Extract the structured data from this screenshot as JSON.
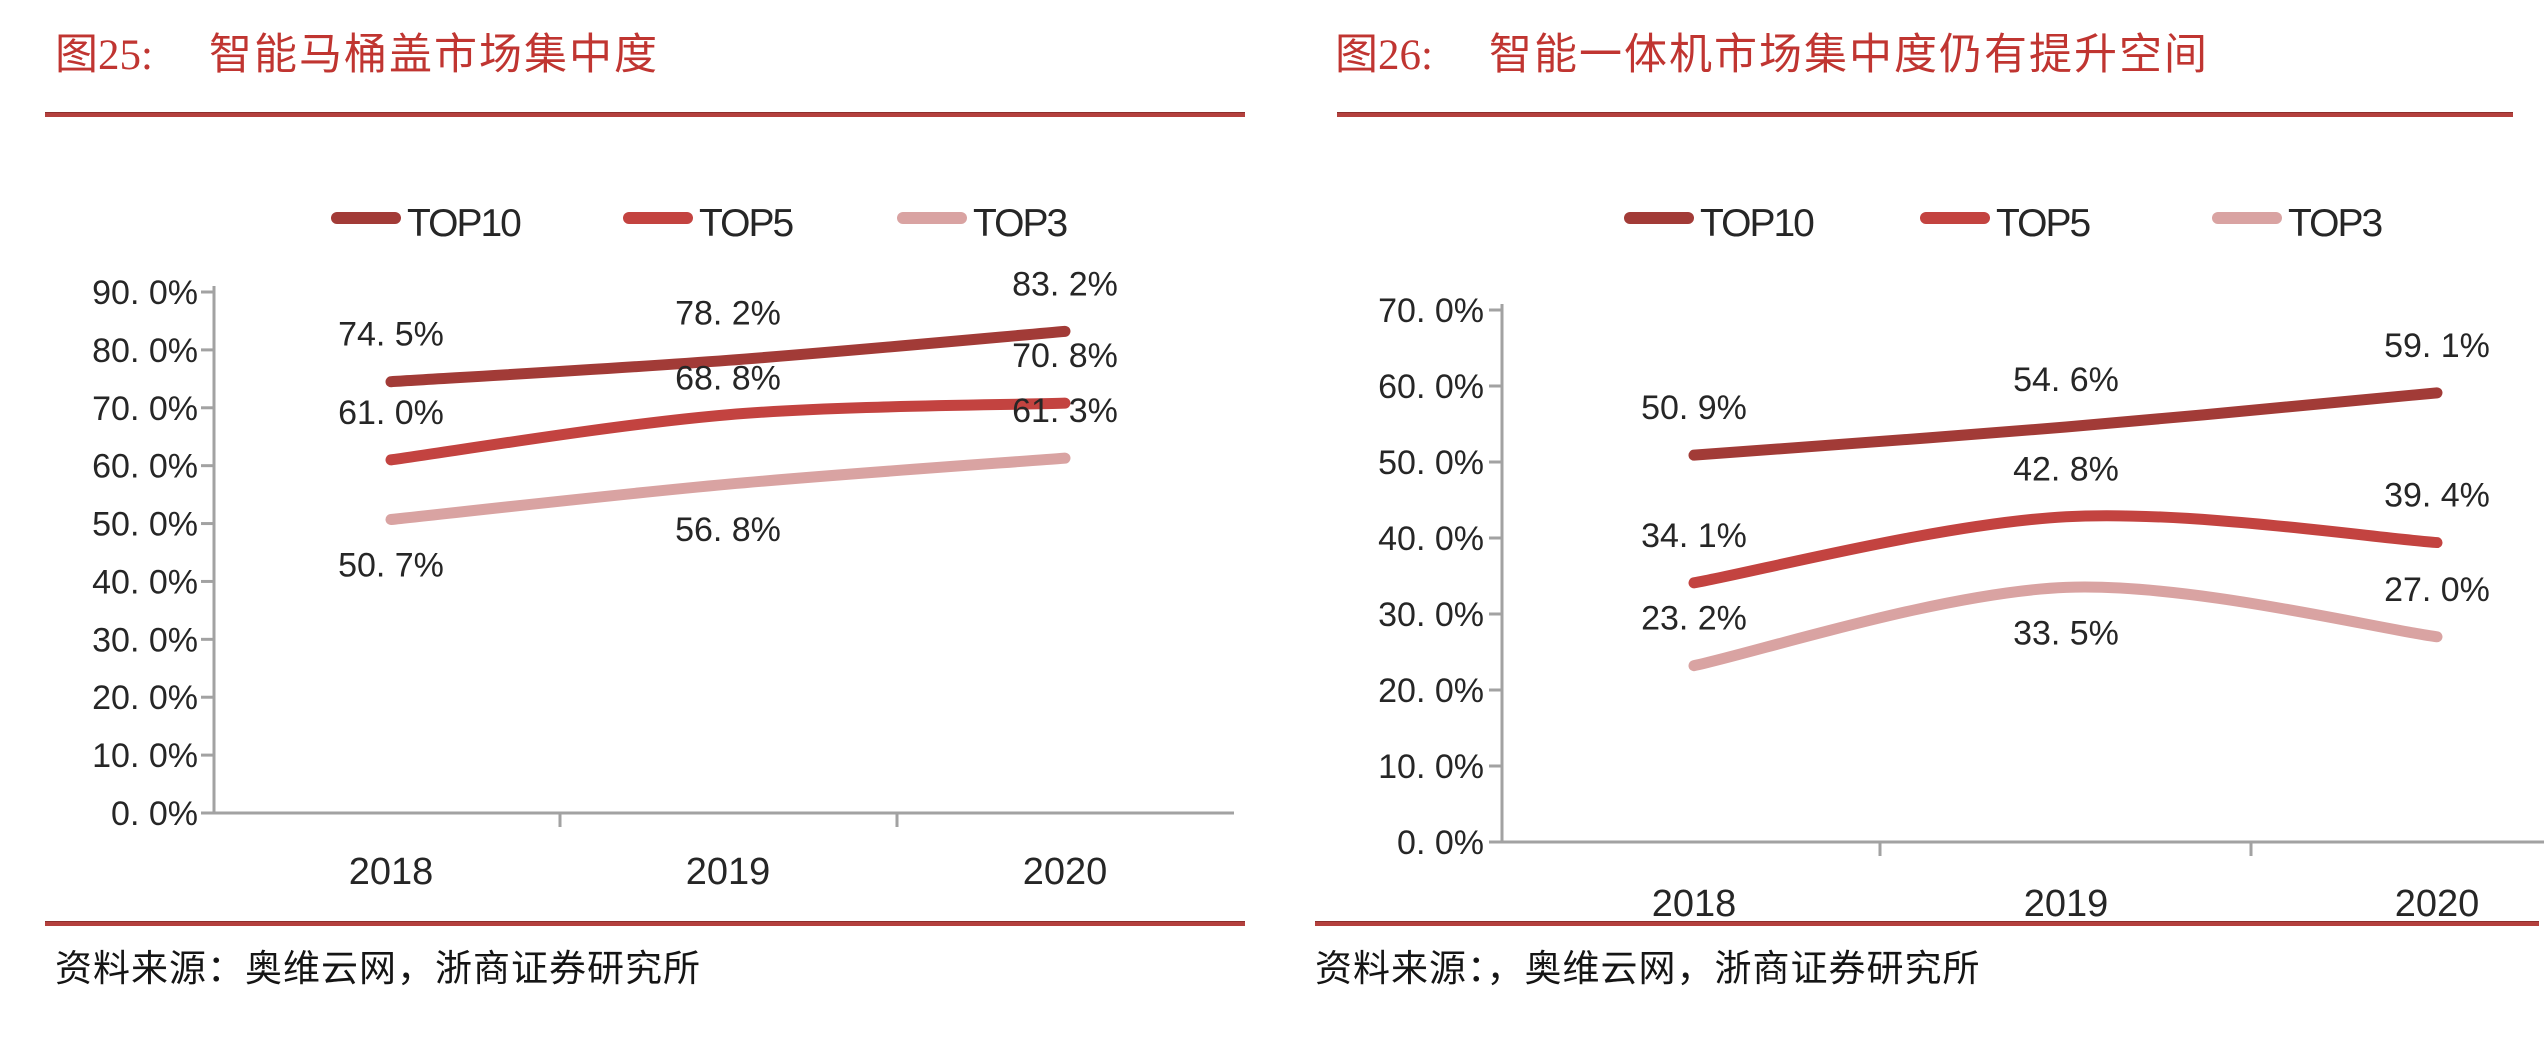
{
  "colors": {
    "top10": "#A23B37",
    "top5": "#C34340",
    "top3": "#D9A3A2",
    "title_red": "#C03531",
    "rule_red": "#B4403D",
    "axis_gray": "#A2A2A2",
    "label_ink": "#262626"
  },
  "figures": [
    {
      "label": "图25:",
      "title": "智能马桶盖市场集中度",
      "source": "资料来源：奥维云网，浙商证券研究所"
    },
    {
      "label": "图26:",
      "title": "智能一体机市场集中度仍有提升空间",
      "source": "资料来源：，奥维云网，浙商证券研究所"
    }
  ],
  "chart_data": [
    {
      "type": "line",
      "title": "图25: 智能马桶盖市场集中度",
      "categories": [
        "2018",
        "2019",
        "2020"
      ],
      "series": [
        {
          "name": "TOP10",
          "color": "#A23B37",
          "values": [
            74.5,
            78.2,
            83.2
          ],
          "labels": [
            "74. 5%",
            "78. 2%",
            "83. 2%"
          ],
          "label_side": [
            "above",
            "above",
            "above"
          ]
        },
        {
          "name": "TOP5",
          "color": "#C34340",
          "values": [
            61.0,
            68.8,
            70.8
          ],
          "labels": [
            "61. 0%",
            "68. 8%",
            "70. 8%"
          ],
          "label_side": [
            "above",
            "above",
            "above"
          ]
        },
        {
          "name": "TOP3",
          "color": "#D9A3A2",
          "values": [
            50.7,
            56.8,
            61.3
          ],
          "labels": [
            "50. 7%",
            "56. 8%",
            "61. 3%"
          ],
          "label_side": [
            "below",
            "below",
            "above"
          ]
        }
      ],
      "ylim": [
        0,
        90
      ],
      "ytick_step": 10,
      "ytick_labels": [
        "90. 0%",
        "80. 0%",
        "70. 0%",
        "60. 0%",
        "50. 0%",
        "40. 0%",
        "30. 0%",
        "20. 0%",
        "10. 0%",
        "0. 0%"
      ],
      "xlabel": "",
      "ylabel": "",
      "grid": false,
      "legend_position": "top",
      "line_style": "smooth"
    },
    {
      "type": "line",
      "title": "图26: 智能一体机市场集中度仍有提升空间",
      "categories": [
        "2018",
        "2019",
        "2020"
      ],
      "series": [
        {
          "name": "TOP10",
          "color": "#A23B37",
          "values": [
            50.9,
            54.6,
            59.1
          ],
          "labels": [
            "50. 9%",
            "54. 6%",
            "59. 1%"
          ],
          "label_side": [
            "above",
            "above",
            "above"
          ]
        },
        {
          "name": "TOP5",
          "color": "#C34340",
          "values": [
            34.1,
            42.8,
            39.4
          ],
          "labels": [
            "34. 1%",
            "42. 8%",
            "39. 4%"
          ],
          "label_side": [
            "above",
            "above",
            "above"
          ]
        },
        {
          "name": "TOP3",
          "color": "#D9A3A2",
          "values": [
            23.2,
            33.5,
            27.0
          ],
          "labels": [
            "23. 2%",
            "33. 5%",
            "27. 0%"
          ],
          "label_side": [
            "above",
            "below",
            "above"
          ]
        }
      ],
      "ylim": [
        0,
        70
      ],
      "ytick_step": 10,
      "ytick_labels": [
        "70. 0%",
        "60. 0%",
        "50. 0%",
        "40. 0%",
        "30. 0%",
        "20. 0%",
        "10. 0%",
        "0. 0%"
      ],
      "xlabel": "",
      "ylabel": "",
      "grid": false,
      "legend_position": "top",
      "line_style": "smooth"
    }
  ]
}
